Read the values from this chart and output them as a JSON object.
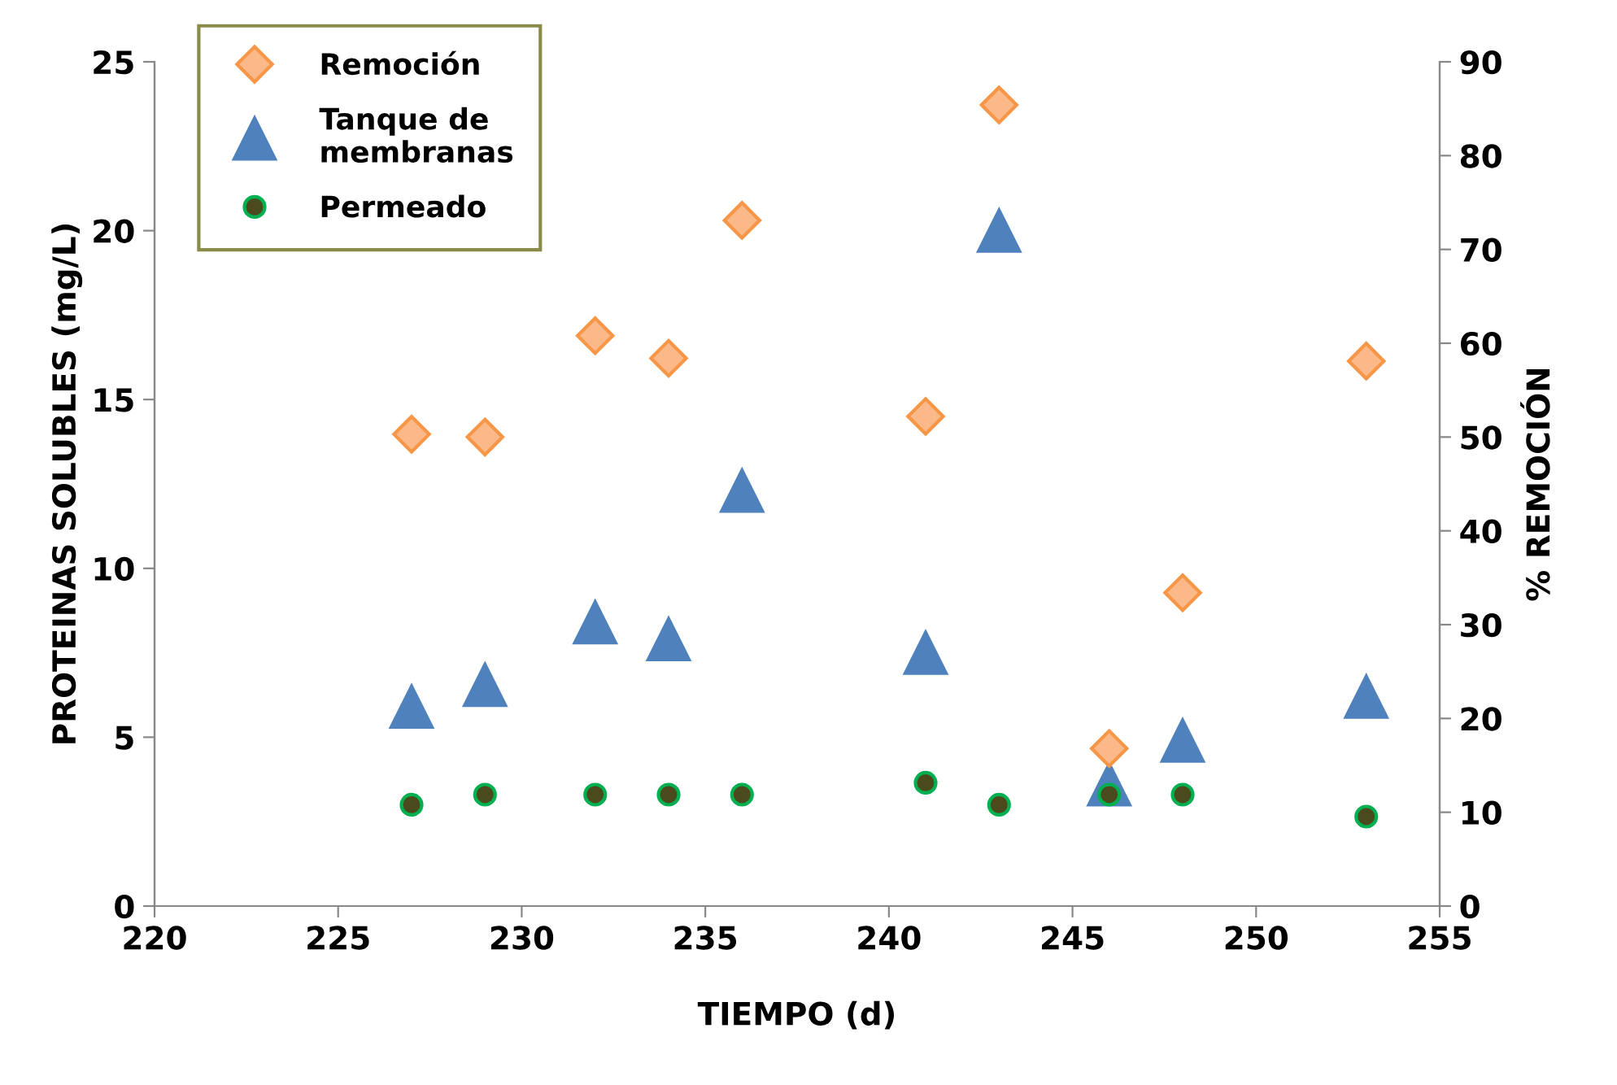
{
  "chart_data": {
    "type": "scatter",
    "xlabel": "TIEMPO (d)",
    "ylabel": "PROTEINAS SOLUBLES (mg/L)",
    "y2label": "% REMOCIÓN",
    "x": [
      227,
      229,
      232,
      234,
      236,
      241,
      243,
      246,
      248,
      253
    ],
    "series": [
      {
        "name": "Remoción",
        "color": "#fbb98a",
        "marker": "diamond",
        "axis": "y2",
        "values": [
          50.3,
          50,
          60.8,
          58.4,
          73.1,
          52.2,
          85.4,
          16.8,
          33.4,
          58.1
        ]
      },
      {
        "name": "Tanque de\nmembranas",
        "color": "#4f81bd",
        "marker": "triangle",
        "values": [
          5.9,
          6.55,
          8.4,
          7.9,
          12.3,
          7.5,
          20.0,
          3.6,
          4.9,
          6.2
        ]
      },
      {
        "name": "Permeado",
        "color": "#4a4a1c",
        "marker": "circle",
        "values": [
          3.0,
          3.3,
          3.3,
          3.3,
          3.3,
          3.65,
          3.0,
          3.3,
          3.3,
          2.65
        ]
      }
    ],
    "xlim": [
      220,
      255
    ],
    "xticks": [
      220,
      225,
      230,
      235,
      240,
      245,
      250,
      255
    ],
    "ylim": [
      0,
      25
    ],
    "yticks": [
      0,
      5,
      10,
      15,
      20,
      25
    ],
    "y2lim": [
      0,
      90
    ],
    "y2ticks": [
      0,
      10,
      20,
      30,
      40,
      50,
      60,
      70,
      80,
      90
    ],
    "grid": false,
    "legend": "top left"
  }
}
